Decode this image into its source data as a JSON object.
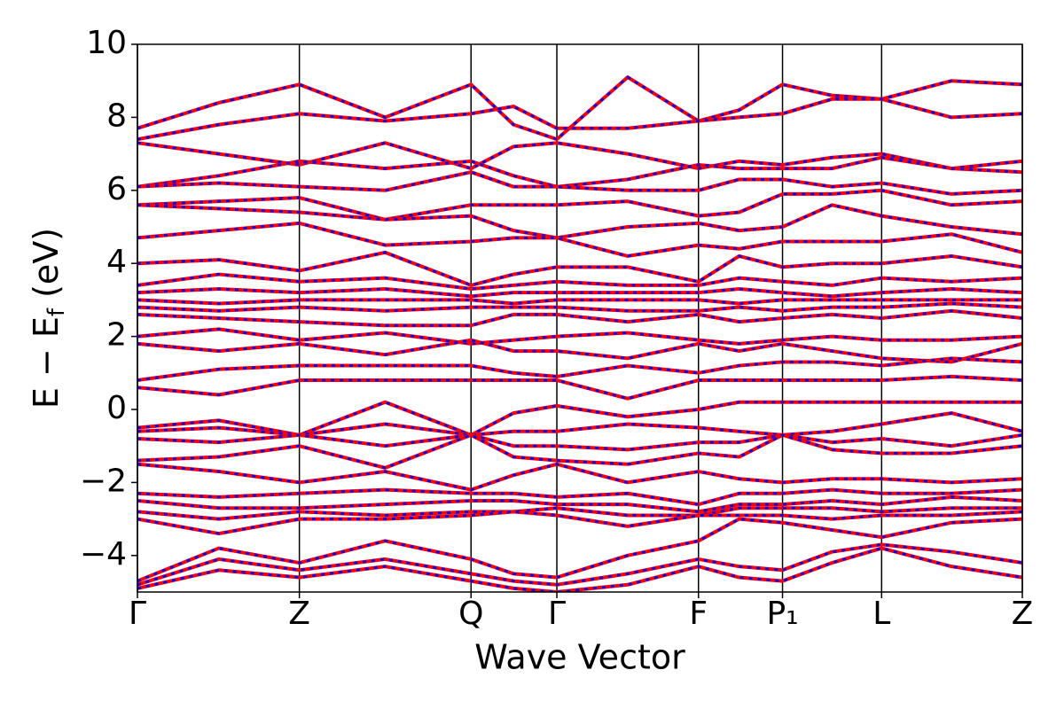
{
  "chart_data": {
    "type": "line",
    "xlabel": "Wave Vector",
    "ylabel": [
      "E − E",
      "f",
      " (eV)"
    ],
    "xlim": [
      0,
      1
    ],
    "ylim": [
      -5,
      10
    ],
    "yticks": [
      {
        "value": -4,
        "label": "−4"
      },
      {
        "value": -2,
        "label": "−2"
      },
      0,
      2,
      4,
      6,
      8,
      10
    ],
    "xticks": [
      {
        "value": 0,
        "label": "Γ"
      },
      {
        "value": 0.183,
        "label": "Z"
      },
      {
        "value": 0.377,
        "label": "Q"
      },
      {
        "value": 0.474,
        "label": "Γ"
      },
      {
        "value": 0.634,
        "label": "F"
      },
      {
        "value": 0.729,
        "label": "P₁"
      },
      {
        "value": 0.841,
        "label": "L"
      },
      {
        "value": 1,
        "label": "Z"
      }
    ],
    "grid": true,
    "line_color": "#ff0000",
    "overlay_color": "#0000ff",
    "x": [
      0,
      0.092,
      0.183,
      0.28,
      0.377,
      0.425,
      0.474,
      0.554,
      0.634,
      0.68,
      0.729,
      0.785,
      0.841,
      0.92,
      1
    ],
    "series": [
      {
        "values": [
          7.7,
          8.4,
          8.9,
          8.0,
          8.9,
          7.8,
          7.4,
          9.1,
          7.9,
          8.2,
          8.9,
          8.6,
          8.5,
          9.0,
          8.9
        ]
      },
      {
        "values": [
          7.4,
          7.8,
          8.1,
          7.9,
          8.1,
          8.3,
          7.7,
          7.7,
          7.9,
          8.0,
          8.1,
          8.5,
          8.5,
          8.0,
          8.1
        ]
      },
      {
        "values": [
          7.3,
          7.0,
          6.7,
          7.3,
          6.6,
          7.2,
          7.3,
          7.0,
          6.6,
          6.8,
          6.7,
          6.9,
          7.0,
          6.6,
          6.8
        ]
      },
      {
        "values": [
          6.1,
          6.4,
          6.8,
          6.6,
          6.8,
          6.4,
          6.1,
          6.3,
          6.7,
          6.6,
          6.6,
          6.6,
          6.9,
          6.6,
          6.5
        ]
      },
      {
        "values": [
          6.1,
          6.2,
          6.1,
          6.0,
          6.5,
          6.1,
          6.1,
          6.0,
          6.0,
          6.3,
          6.3,
          6.1,
          6.2,
          5.9,
          6.0
        ]
      },
      {
        "values": [
          5.6,
          5.7,
          5.8,
          5.2,
          5.6,
          5.6,
          5.6,
          5.7,
          5.3,
          5.4,
          5.9,
          5.9,
          6.0,
          5.6,
          5.7
        ]
      },
      {
        "values": [
          5.6,
          5.5,
          5.4,
          5.2,
          5.3,
          4.9,
          4.7,
          5.0,
          5.1,
          4.9,
          5.0,
          5.6,
          5.3,
          5.0,
          4.8
        ]
      },
      {
        "values": [
          4.7,
          4.9,
          5.1,
          4.5,
          4.6,
          4.7,
          4.7,
          4.2,
          4.5,
          4.4,
          4.6,
          4.6,
          4.6,
          4.8,
          4.3
        ]
      },
      {
        "values": [
          4.0,
          4.1,
          3.8,
          4.3,
          3.4,
          3.7,
          3.9,
          3.9,
          3.5,
          4.2,
          3.9,
          4.0,
          4.0,
          4.2,
          3.9
        ]
      },
      {
        "values": [
          3.4,
          3.7,
          3.5,
          3.6,
          3.3,
          3.4,
          3.5,
          3.4,
          3.4,
          3.6,
          3.5,
          3.4,
          3.6,
          3.5,
          3.6
        ]
      },
      {
        "values": [
          3.2,
          3.3,
          3.2,
          3.3,
          3.1,
          3.2,
          3.2,
          3.2,
          3.2,
          3.3,
          3.2,
          3.1,
          3.2,
          3.3,
          3.2
        ]
      },
      {
        "values": [
          3.0,
          2.9,
          3.0,
          3.0,
          3.0,
          2.9,
          3.0,
          3.0,
          3.0,
          2.9,
          3.0,
          3.0,
          3.0,
          3.0,
          3.0
        ]
      },
      {
        "values": [
          2.8,
          2.7,
          2.8,
          2.7,
          2.8,
          2.8,
          2.8,
          2.7,
          2.7,
          2.8,
          2.7,
          2.8,
          2.8,
          2.9,
          2.8
        ]
      },
      {
        "values": [
          2.6,
          2.5,
          2.4,
          2.3,
          2.3,
          2.6,
          2.6,
          2.4,
          2.6,
          2.4,
          2.5,
          2.6,
          2.5,
          2.7,
          2.5
        ]
      },
      {
        "values": [
          2.0,
          2.2,
          1.9,
          2.1,
          1.8,
          1.9,
          2.0,
          2.1,
          1.9,
          1.8,
          1.9,
          2.0,
          1.9,
          1.9,
          2.0
        ]
      },
      {
        "values": [
          1.8,
          1.6,
          1.8,
          1.5,
          1.9,
          1.6,
          1.6,
          1.4,
          1.8,
          1.6,
          1.8,
          1.6,
          1.4,
          1.3,
          1.8
        ]
      },
      {
        "values": [
          0.8,
          1.1,
          1.2,
          1.2,
          1.2,
          1.0,
          0.9,
          1.2,
          1.0,
          1.2,
          1.3,
          1.3,
          1.2,
          1.4,
          1.3
        ]
      },
      {
        "values": [
          0.6,
          0.4,
          0.8,
          0.8,
          0.8,
          0.8,
          0.8,
          0.3,
          0.8,
          0.8,
          0.8,
          0.8,
          0.8,
          0.9,
          0.8
        ]
      },
      {
        "values": [
          -0.5,
          -0.3,
          -0.7,
          0.2,
          -0.7,
          -0.1,
          0.1,
          -0.2,
          0.0,
          0.2,
          0.2,
          0.2,
          0.2,
          0.2,
          0.2
        ]
      },
      {
        "values": [
          -0.6,
          -0.5,
          -0.7,
          -0.4,
          -0.7,
          -0.6,
          -0.6,
          -0.4,
          -0.5,
          -0.6,
          -0.7,
          -0.6,
          -0.4,
          -0.1,
          -0.6
        ]
      },
      {
        "values": [
          -0.8,
          -0.9,
          -0.7,
          -1.0,
          -0.7,
          -1.0,
          -1.0,
          -1.1,
          -0.9,
          -0.9,
          -0.7,
          -0.9,
          -0.8,
          -1.0,
          -0.7
        ]
      },
      {
        "values": [
          -1.4,
          -1.3,
          -1.0,
          -1.6,
          -0.7,
          -1.3,
          -1.4,
          -1.5,
          -1.2,
          -1.3,
          -0.7,
          -1.1,
          -1.2,
          -1.2,
          -1.0
        ]
      },
      {
        "values": [
          -1.5,
          -1.7,
          -2.0,
          -1.7,
          -2.2,
          -1.8,
          -1.5,
          -2.0,
          -1.7,
          -1.9,
          -2.0,
          -1.9,
          -1.9,
          -2.0,
          -1.9
        ]
      },
      {
        "values": [
          -2.3,
          -2.4,
          -2.3,
          -2.2,
          -2.3,
          -2.3,
          -2.4,
          -2.3,
          -2.6,
          -2.3,
          -2.3,
          -2.2,
          -2.3,
          -2.3,
          -2.2
        ]
      },
      {
        "values": [
          -2.5,
          -2.7,
          -2.7,
          -2.6,
          -2.5,
          -2.5,
          -2.6,
          -2.6,
          -2.8,
          -2.6,
          -2.6,
          -2.5,
          -2.6,
          -2.4,
          -2.5
        ]
      },
      {
        "values": [
          -2.8,
          -3.0,
          -2.8,
          -2.9,
          -2.8,
          -2.8,
          -2.7,
          -2.9,
          -2.9,
          -2.7,
          -2.7,
          -2.7,
          -2.8,
          -2.7,
          -2.7
        ]
      },
      {
        "values": [
          -3.0,
          -3.4,
          -3.0,
          -3.0,
          -2.9,
          -2.8,
          -2.9,
          -3.2,
          -2.9,
          -2.9,
          -2.9,
          -3.0,
          -2.9,
          -2.9,
          -2.8
        ]
      },
      {
        "values": [
          -4.7,
          -3.8,
          -4.2,
          -3.6,
          -4.1,
          -4.5,
          -4.6,
          -4.0,
          -3.6,
          -3.0,
          -3.1,
          -3.3,
          -3.5,
          -3.1,
          -3.0
        ]
      },
      {
        "values": [
          -4.8,
          -4.1,
          -4.4,
          -4.1,
          -4.5,
          -4.7,
          -4.8,
          -4.5,
          -4.1,
          -4.3,
          -4.4,
          -3.9,
          -3.7,
          -3.9,
          -4.2
        ]
      },
      {
        "values": [
          -4.9,
          -4.4,
          -4.6,
          -4.3,
          -4.7,
          -4.9,
          -5.0,
          -4.8,
          -4.3,
          -4.6,
          -4.7,
          -4.2,
          -3.8,
          -4.3,
          -4.6
        ]
      }
    ]
  }
}
